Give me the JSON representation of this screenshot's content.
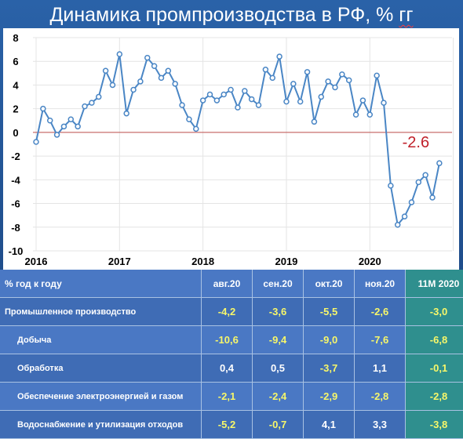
{
  "title_main": "Динамика промпроизводства в РФ, % ",
  "title_unit": "гг",
  "chart_data": {
    "type": "line",
    "title": "Динамика промпроизводства в РФ, % гг",
    "ylim": [
      -10,
      8
    ],
    "yticks": [
      "8",
      "6",
      "4",
      "2",
      "0",
      "-2",
      "-4",
      "-6",
      "-8",
      "-10"
    ],
    "x_ticks": [
      "2016",
      "2017",
      "2018",
      "2019",
      "2020"
    ],
    "x_start": "2016-01",
    "annotation": "-2.6",
    "series": [
      {
        "name": "",
        "color": "#4a86c5",
        "values": [
          -0.8,
          2.0,
          1.0,
          -0.2,
          0.5,
          1.1,
          0.5,
          2.2,
          2.5,
          3.0,
          5.2,
          4.0,
          6.6,
          1.6,
          3.6,
          4.3,
          6.3,
          5.6,
          4.6,
          5.2,
          4.1,
          2.3,
          1.1,
          0.3,
          2.7,
          3.2,
          2.7,
          3.2,
          3.6,
          2.1,
          3.5,
          2.8,
          2.3,
          5.3,
          4.6,
          6.4,
          2.6,
          4.1,
          2.6,
          5.1,
          0.9,
          3.0,
          4.3,
          3.8,
          4.9,
          4.4,
          1.5,
          2.7,
          1.5,
          4.8,
          2.5,
          -4.5,
          -7.8,
          -7.1,
          -5.9,
          -4.2,
          -3.6,
          -5.5,
          -2.6
        ]
      }
    ]
  },
  "table": {
    "header": {
      "label": "% год к году",
      "cols": [
        "авг.20",
        "сен.20",
        "окт.20",
        "ноя.20",
        "11М 2020"
      ]
    },
    "rows": [
      {
        "label": "Промышленное производство",
        "values": [
          "-4,2",
          "-3,6",
          "-5,5",
          "-2,6",
          "-3,0"
        ],
        "colors": [
          "yellow",
          "yellow",
          "yellow",
          "yellow",
          "yellow"
        ],
        "indent": false
      },
      {
        "label": "Добыча",
        "values": [
          "-10,6",
          "-9,4",
          "-9,0",
          "-7,6",
          "-6,8"
        ],
        "colors": [
          "yellow",
          "yellow",
          "yellow",
          "yellow",
          "yellow"
        ],
        "indent": true
      },
      {
        "label": "Обработка",
        "values": [
          "0,4",
          "0,5",
          "-3,7",
          "1,1",
          "-0,1"
        ],
        "colors": [
          "white",
          "white",
          "yellow",
          "white",
          "yellow"
        ],
        "indent": true
      },
      {
        "label": "Обеспечение электроэнергией и газом",
        "values": [
          "-2,1",
          "-2,4",
          "-2,9",
          "-2,8",
          "-2,8"
        ],
        "colors": [
          "yellow",
          "yellow",
          "yellow",
          "yellow",
          "yellow"
        ],
        "indent": true
      },
      {
        "label": "Водоснабжение и утилизация отходов",
        "values": [
          "-5,2",
          "-0,7",
          "4,1",
          "3,3",
          "-3,8"
        ],
        "colors": [
          "yellow",
          "yellow",
          "white",
          "white",
          "yellow"
        ],
        "indent": true
      }
    ],
    "colors": {
      "yellow": "#f7f76a",
      "white": "#ffffff",
      "highlight": "#2f8f8e"
    }
  }
}
